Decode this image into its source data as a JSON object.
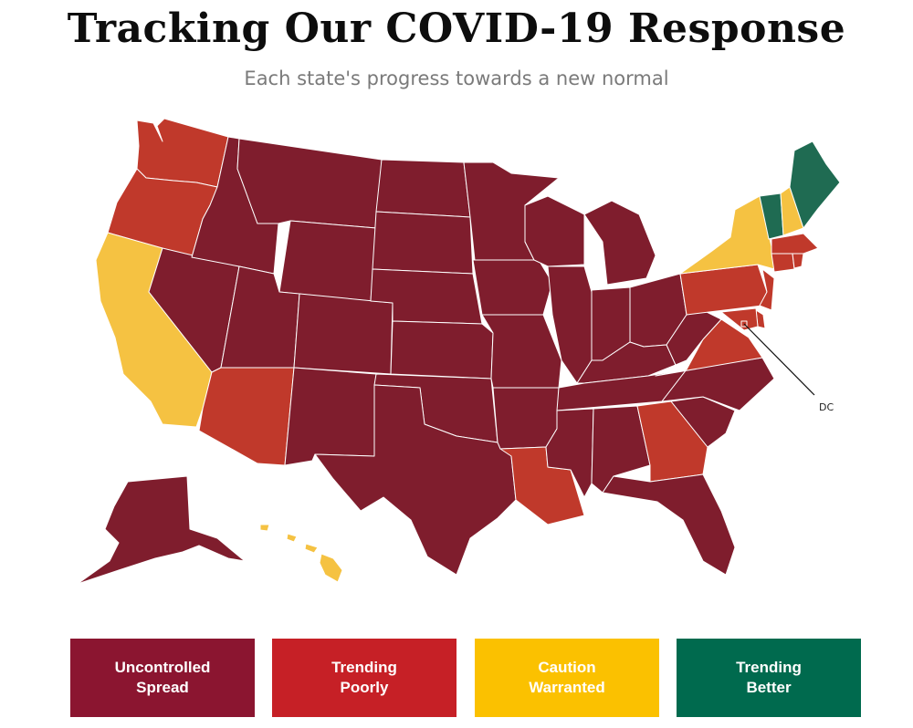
{
  "header": {
    "title": "Tracking Our COVID-19 Response",
    "subtitle": "Each state's progress towards a new normal"
  },
  "colors": {
    "uncontrolled": "#7f1d2d",
    "trending_poorly": "#c0392b",
    "caution": "#f5c242",
    "trending_better": "#1f6b52",
    "border": "#ffffff"
  },
  "legend": [
    {
      "label": "Uncontrolled\nSpread",
      "color": "#8b1530"
    },
    {
      "label": "Trending\nPoorly",
      "color": "#c62026"
    },
    {
      "label": "Caution\nWarranted",
      "color": "#fbc100"
    },
    {
      "label": "Trending\nBetter",
      "color": "#006a4e"
    }
  ],
  "map": {
    "callout_label": "DC",
    "states": {
      "WA": "trending_poorly",
      "OR": "trending_poorly",
      "CA": "caution",
      "NV": "uncontrolled",
      "ID": "uncontrolled",
      "MT": "uncontrolled",
      "WY": "uncontrolled",
      "UT": "uncontrolled",
      "AZ": "trending_poorly",
      "CO": "uncontrolled",
      "NM": "uncontrolled",
      "ND": "uncontrolled",
      "SD": "uncontrolled",
      "NE": "uncontrolled",
      "KS": "uncontrolled",
      "OK": "uncontrolled",
      "TX": "uncontrolled",
      "MN": "uncontrolled",
      "IA": "uncontrolled",
      "MO": "uncontrolled",
      "AR": "uncontrolled",
      "LA": "trending_poorly",
      "WI": "uncontrolled",
      "IL": "uncontrolled",
      "MI": "uncontrolled",
      "IN": "uncontrolled",
      "OH": "uncontrolled",
      "KY": "uncontrolled",
      "TN": "uncontrolled",
      "MS": "uncontrolled",
      "AL": "uncontrolled",
      "GA": "trending_poorly",
      "FL": "uncontrolled",
      "SC": "uncontrolled",
      "NC": "uncontrolled",
      "VA": "trending_poorly",
      "WV": "uncontrolled",
      "PA": "trending_poorly",
      "NY": "caution",
      "VT": "trending_better",
      "NH": "caution",
      "ME": "trending_better",
      "MA": "trending_poorly",
      "CT": "trending_poorly",
      "RI": "trending_poorly",
      "NJ": "trending_poorly",
      "DE": "trending_poorly",
      "MD": "trending_poorly",
      "DC": "trending_poorly",
      "AK": "uncontrolled",
      "HI": "caution"
    }
  }
}
